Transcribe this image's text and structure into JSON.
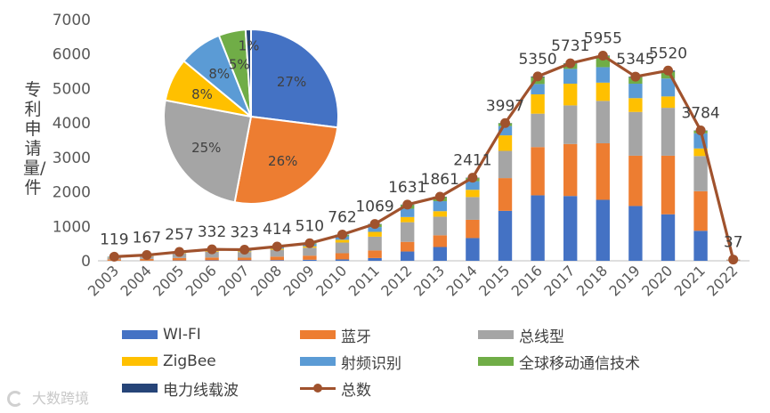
{
  "chart_data": [
    {
      "type": "bar",
      "stacked": true,
      "ylabel": "专利申请量/件",
      "ylim": [
        0,
        7000
      ],
      "yticks": [
        0,
        1000,
        2000,
        3000,
        4000,
        5000,
        6000,
        7000
      ],
      "categories": [
        "2003",
        "2004",
        "2005",
        "2006",
        "2007",
        "2008",
        "2009",
        "2010",
        "2011",
        "2012",
        "2013",
        "2014",
        "2015",
        "2016",
        "2017",
        "2018",
        "2019",
        "2020",
        "2021",
        "2022"
      ],
      "series": [
        {
          "name": "WI-FI",
          "color": "#4472c4",
          "values": [
            3,
            5,
            10,
            15,
            15,
            20,
            30,
            40,
            80,
            270,
            400,
            660,
            1450,
            1900,
            1880,
            1770,
            1590,
            1350,
            870,
            5
          ]
        },
        {
          "name": "蓝牙",
          "color": "#ed7d31",
          "values": [
            40,
            50,
            70,
            80,
            75,
            100,
            120,
            180,
            220,
            280,
            340,
            530,
            950,
            1400,
            1510,
            1640,
            1460,
            1700,
            1150,
            10
          ]
        },
        {
          "name": "总线型",
          "color": "#a5a5a5",
          "values": [
            55,
            80,
            130,
            170,
            165,
            200,
            230,
            310,
            400,
            570,
            540,
            660,
            790,
            970,
            1120,
            1230,
            1270,
            1390,
            1020,
            12
          ]
        },
        {
          "name": "ZigBee",
          "color": "#ffc000",
          "values": [
            5,
            8,
            15,
            22,
            22,
            30,
            40,
            80,
            140,
            150,
            160,
            210,
            450,
            560,
            630,
            530,
            400,
            330,
            220,
            3
          ]
        },
        {
          "name": "射频识别",
          "color": "#5b9bd5",
          "values": [
            10,
            14,
            20,
            30,
            30,
            40,
            60,
            100,
            140,
            240,
            290,
            250,
            270,
            300,
            430,
            450,
            420,
            520,
            440,
            4
          ]
        },
        {
          "name": "全球移动通信技术",
          "color": "#70ad47",
          "values": [
            4,
            7,
            9,
            12,
            13,
            20,
            25,
            45,
            80,
            110,
            120,
            90,
            80,
            200,
            150,
            320,
            190,
            200,
            75,
            2
          ]
        },
        {
          "name": "电力线载波",
          "color": "#264478",
          "values": [
            2,
            3,
            3,
            3,
            3,
            4,
            5,
            7,
            9,
            11,
            11,
            11,
            7,
            20,
            11,
            15,
            15,
            30,
            9,
            1
          ]
        }
      ]
    },
    {
      "type": "line",
      "name": "总数",
      "color": "#a0522d",
      "categories": [
        "2003",
        "2004",
        "2005",
        "2006",
        "2007",
        "2008",
        "2009",
        "2010",
        "2011",
        "2012",
        "2013",
        "2014",
        "2015",
        "2016",
        "2017",
        "2018",
        "2019",
        "2020",
        "2021",
        "2022"
      ],
      "values": [
        119,
        167,
        257,
        332,
        323,
        414,
        510,
        762,
        1069,
        1631,
        1861,
        2411,
        3997,
        5350,
        5731,
        5955,
        5345,
        5520,
        3784,
        37
      ],
      "data_labels": [
        "119",
        "167",
        "257",
        "332",
        "323",
        "414",
        "510",
        "762",
        "1069",
        "1631",
        "1861",
        "2411",
        "3997",
        "5350",
        "5731",
        "5955",
        "5345",
        "5520",
        "3784",
        "37"
      ]
    },
    {
      "type": "pie",
      "slices": [
        {
          "name": "WI-FI",
          "value": 27,
          "label": "27%",
          "color": "#4472c4"
        },
        {
          "name": "蓝牙",
          "value": 26,
          "label": "26%",
          "color": "#ed7d31"
        },
        {
          "name": "总线型",
          "value": 25,
          "label": "25%",
          "color": "#a5a5a5"
        },
        {
          "name": "ZigBee",
          "value": 8,
          "label": "8%",
          "color": "#ffc000"
        },
        {
          "name": "射频识别",
          "value": 8,
          "label": "8%",
          "color": "#5b9bd5"
        },
        {
          "name": "全球移动通信技术",
          "value": 5,
          "label": "5%",
          "color": "#70ad47"
        },
        {
          "name": "电力线载波",
          "value": 1,
          "label": "1%",
          "color": "#264478"
        }
      ]
    }
  ],
  "legend": {
    "placement": "bottom",
    "items": [
      {
        "label": "WI-FI",
        "color": "#4472c4",
        "kind": "bar"
      },
      {
        "label": "蓝牙",
        "color": "#ed7d31",
        "kind": "bar"
      },
      {
        "label": "总线型",
        "color": "#a5a5a5",
        "kind": "bar"
      },
      {
        "label": "ZigBee",
        "color": "#ffc000",
        "kind": "bar"
      },
      {
        "label": "射频识别",
        "color": "#5b9bd5",
        "kind": "bar"
      },
      {
        "label": "全球移动通信技术",
        "color": "#70ad47",
        "kind": "bar"
      },
      {
        "label": "电力线载波",
        "color": "#264478",
        "kind": "bar"
      },
      {
        "label": "总数",
        "color": "#a0522d",
        "kind": "line"
      }
    ]
  },
  "watermark": "大数跨境"
}
